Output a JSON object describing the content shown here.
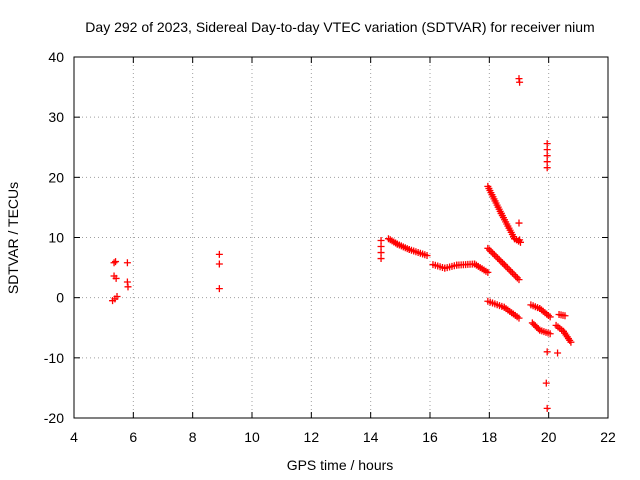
{
  "chart_data": {
    "type": "scatter",
    "title": "Day 292 of 2023, Sidereal Day-to-day VTEC variation (SDTVAR) for receiver nium",
    "xlabel": "GPS time / hours",
    "ylabel": "SDTVAR / TECUs",
    "xlim": [
      4,
      22
    ],
    "ylim": [
      -20,
      40
    ],
    "xticks": [
      4,
      6,
      8,
      10,
      12,
      14,
      16,
      18,
      20,
      22
    ],
    "yticks": [
      -20,
      -10,
      0,
      10,
      20,
      30,
      40
    ],
    "grid": true,
    "marker": "plus",
    "series_color": "#ff0000",
    "series": [
      {
        "name": "isolated-points",
        "points": [
          [
            5.35,
            5.8
          ],
          [
            5.4,
            6.0
          ],
          [
            5.35,
            3.6
          ],
          [
            5.42,
            3.2
          ],
          [
            5.3,
            -0.5
          ],
          [
            5.38,
            -0.2
          ],
          [
            5.45,
            0.2
          ],
          [
            5.8,
            5.8
          ],
          [
            5.8,
            2.6
          ],
          [
            5.82,
            1.8
          ],
          [
            8.9,
            7.2
          ],
          [
            8.9,
            5.6
          ],
          [
            8.9,
            1.5
          ],
          [
            14.35,
            9.5
          ],
          [
            14.35,
            8.5
          ],
          [
            14.35,
            7.5
          ],
          [
            14.35,
            6.5
          ],
          [
            19.0,
            36.4
          ],
          [
            19.02,
            35.8
          ],
          [
            19.0,
            12.4
          ],
          [
            19.02,
            9.6
          ],
          [
            19.95,
            25.6
          ],
          [
            19.95,
            24.6
          ],
          [
            19.95,
            23.6
          ],
          [
            19.95,
            22.6
          ],
          [
            19.95,
            21.6
          ],
          [
            19.95,
            -9.0
          ],
          [
            19.92,
            -14.2
          ],
          [
            19.95,
            -18.4
          ],
          [
            20.3,
            -9.2
          ]
        ]
      },
      {
        "name": "track-a",
        "segments": [
          [
            14.6,
            9.8,
            14.9,
            8.9
          ],
          [
            14.9,
            8.9,
            15.3,
            8.0
          ],
          [
            15.3,
            8.0,
            15.9,
            7.0
          ],
          [
            16.1,
            5.5,
            16.5,
            4.9
          ],
          [
            16.5,
            4.9,
            16.9,
            5.4
          ],
          [
            16.9,
            5.4,
            17.5,
            5.6
          ],
          [
            17.5,
            5.6,
            17.95,
            4.2
          ]
        ]
      },
      {
        "name": "track-b",
        "segments": [
          [
            17.95,
            18.5,
            18.4,
            14.0
          ],
          [
            18.4,
            14.0,
            18.85,
            9.8
          ],
          [
            18.85,
            9.8,
            19.05,
            9.2
          ]
        ]
      },
      {
        "name": "track-c",
        "segments": [
          [
            17.95,
            8.2,
            18.5,
            5.5
          ],
          [
            18.5,
            5.5,
            19.0,
            3.0
          ]
        ]
      },
      {
        "name": "track-d",
        "segments": [
          [
            17.95,
            -0.6,
            18.5,
            -1.6
          ],
          [
            18.5,
            -1.6,
            19.0,
            -3.4
          ]
        ]
      },
      {
        "name": "track-e",
        "segments": [
          [
            19.4,
            -1.2,
            19.7,
            -1.8
          ],
          [
            19.7,
            -1.8,
            20.05,
            -3.2
          ]
        ]
      },
      {
        "name": "track-f",
        "segments": [
          [
            19.45,
            -4.2,
            19.7,
            -5.4
          ],
          [
            19.7,
            -5.4,
            20.05,
            -6.0
          ]
        ]
      },
      {
        "name": "track-g",
        "segments": [
          [
            20.35,
            -2.8,
            20.55,
            -3.0
          ]
        ]
      },
      {
        "name": "track-h",
        "segments": [
          [
            20.25,
            -4.6,
            20.5,
            -5.6
          ],
          [
            20.5,
            -5.6,
            20.75,
            -7.4
          ]
        ]
      }
    ]
  }
}
